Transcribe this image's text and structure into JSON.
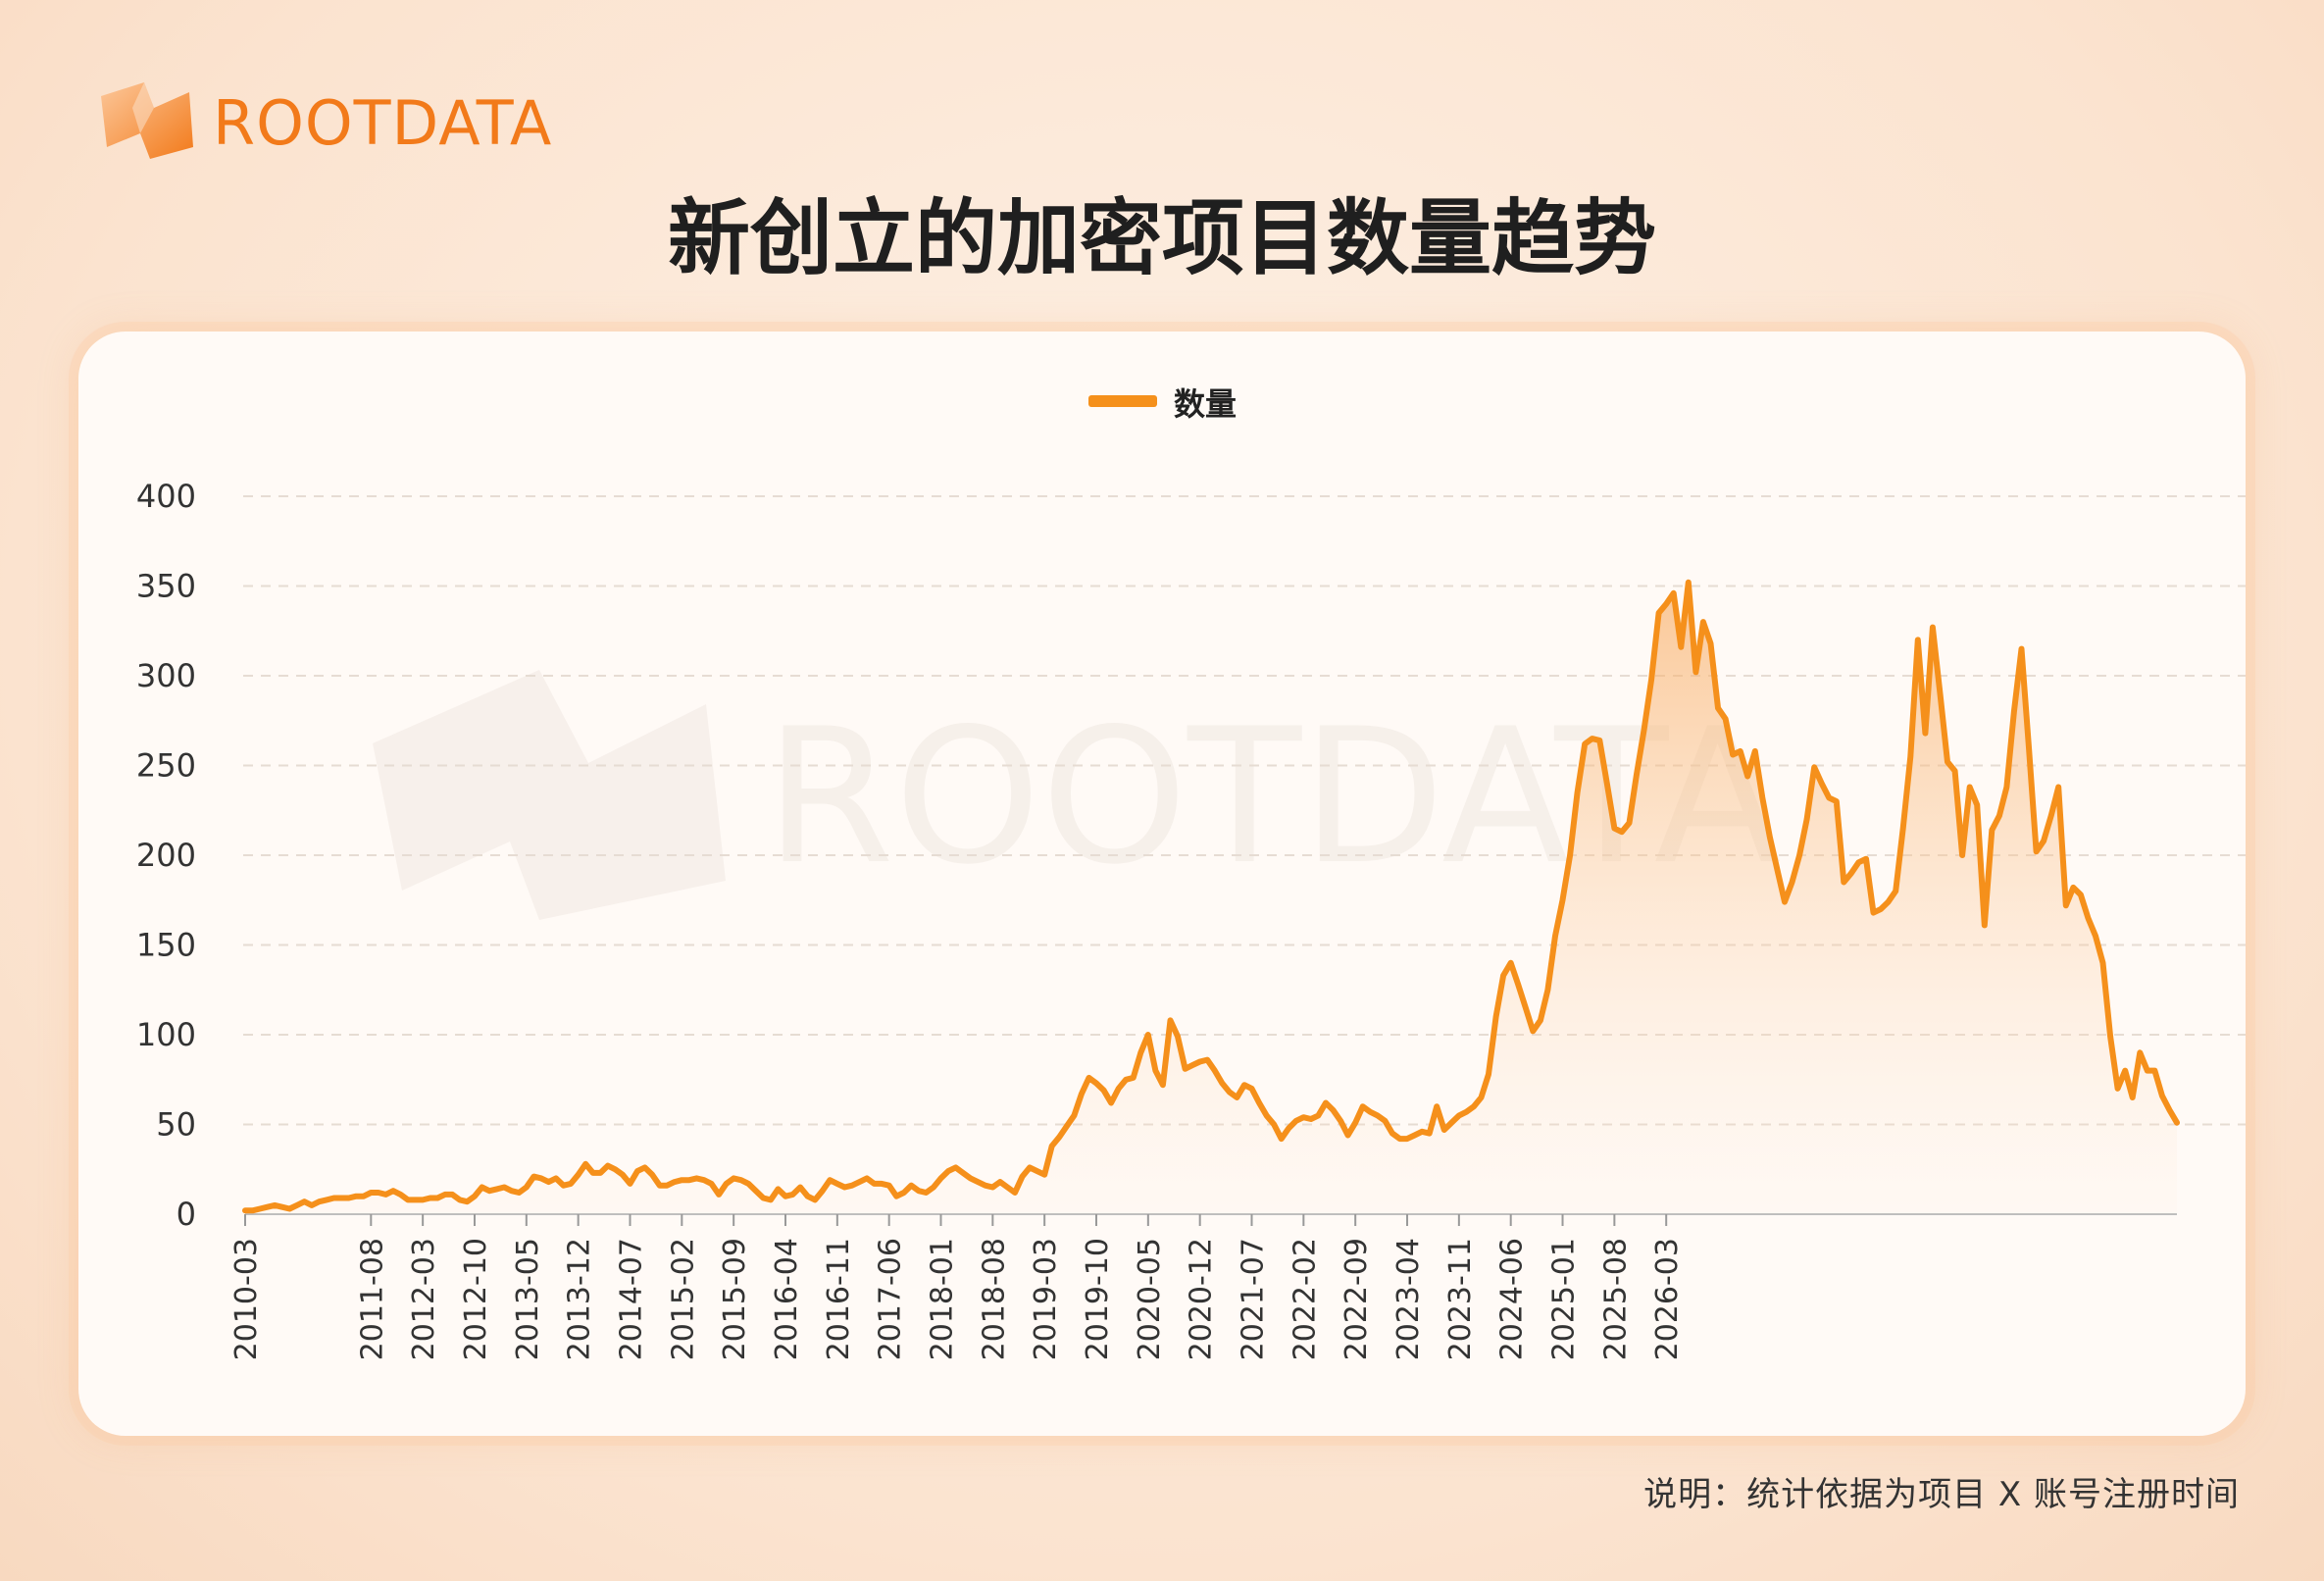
{
  "brand": {
    "name": "ROOTDATA",
    "color": "#f27a1a"
  },
  "title": "新创立的加密项目数量趋势",
  "footnote": "说明：统计依据为项目 X 账号注册时间",
  "watermark": "ROOTDATA",
  "chart_data": {
    "type": "area",
    "title": "新创立的加密项目数量趋势",
    "xlabel": "",
    "ylabel": "",
    "ylim": [
      0,
      400
    ],
    "yticks": [
      0,
      50,
      100,
      150,
      200,
      250,
      300,
      350,
      400
    ],
    "grid": "horizontal-dashed",
    "legend_position": "top-center",
    "line_color": "#f5901b",
    "xtick_labels": [
      "2010-03",
      "2011-08",
      "2012-03",
      "2012-10",
      "2013-05",
      "2013-12",
      "2014-07",
      "2015-02",
      "2015-09",
      "2016-04",
      "2016-11",
      "2017-06",
      "2018-01",
      "2018-08",
      "2019-03",
      "2019-10",
      "2020-05",
      "2020-12",
      "2021-07",
      "2022-02",
      "2022-09",
      "2023-04",
      "2023-11",
      "2024-06",
      "2025-01",
      "2025-08",
      "2026-03"
    ],
    "start": "2010-03",
    "series": [
      {
        "name": "数量",
        "values": [
          2,
          2,
          3,
          4,
          5,
          4,
          3,
          5,
          7,
          5,
          7,
          8,
          9,
          9,
          9,
          10,
          10,
          12,
          12,
          11,
          13,
          11,
          8,
          8,
          8,
          9,
          9,
          11,
          11,
          8,
          7,
          10,
          15,
          13,
          14,
          15,
          13,
          12,
          15,
          21,
          20,
          18,
          20,
          16,
          17,
          22,
          28,
          23,
          23,
          27,
          25,
          22,
          17,
          24,
          26,
          22,
          16,
          16,
          18,
          19,
          19,
          20,
          19,
          17,
          11,
          17,
          20,
          19,
          17,
          13,
          9,
          8,
          14,
          10,
          11,
          15,
          10,
          8,
          13,
          19,
          17,
          15,
          16,
          18,
          20,
          17,
          17,
          16,
          10,
          12,
          16,
          13,
          12,
          15,
          20,
          24,
          26,
          23,
          20,
          18,
          16,
          15,
          18,
          15,
          12,
          21,
          26,
          24,
          22,
          38,
          43,
          49,
          55,
          67,
          76,
          73,
          69,
          62,
          70,
          75,
          76,
          90,
          100,
          80,
          72,
          108,
          99,
          81,
          83,
          85,
          86,
          80,
          73,
          68,
          65,
          72,
          70,
          62,
          55,
          50,
          42,
          48,
          52,
          54,
          53,
          55,
          62,
          58,
          52,
          44,
          51,
          60,
          57,
          55,
          52,
          45,
          42,
          42,
          44,
          46,
          45,
          60,
          47,
          51,
          55,
          57,
          60,
          65,
          78,
          110,
          133,
          140,
          128,
          115,
          102,
          108,
          125,
          155,
          175,
          200,
          235,
          262,
          265,
          264,
          240,
          215,
          213,
          218,
          245,
          270,
          298,
          335,
          340,
          346,
          316,
          352,
          302,
          330,
          318,
          282,
          276,
          256,
          258,
          244,
          258,
          232,
          210,
          192,
          174,
          185,
          200,
          220,
          249,
          240,
          232,
          230,
          185,
          190,
          196,
          198,
          168,
          170,
          174,
          180,
          215,
          255,
          320,
          268,
          327,
          290,
          252,
          247,
          200,
          238,
          228,
          161,
          214,
          222,
          238,
          280,
          315,
          260,
          202,
          208,
          222,
          238,
          172,
          182,
          178,
          165,
          155,
          140,
          99,
          70,
          80,
          65,
          90,
          80,
          80,
          66,
          58,
          51
        ]
      }
    ]
  }
}
